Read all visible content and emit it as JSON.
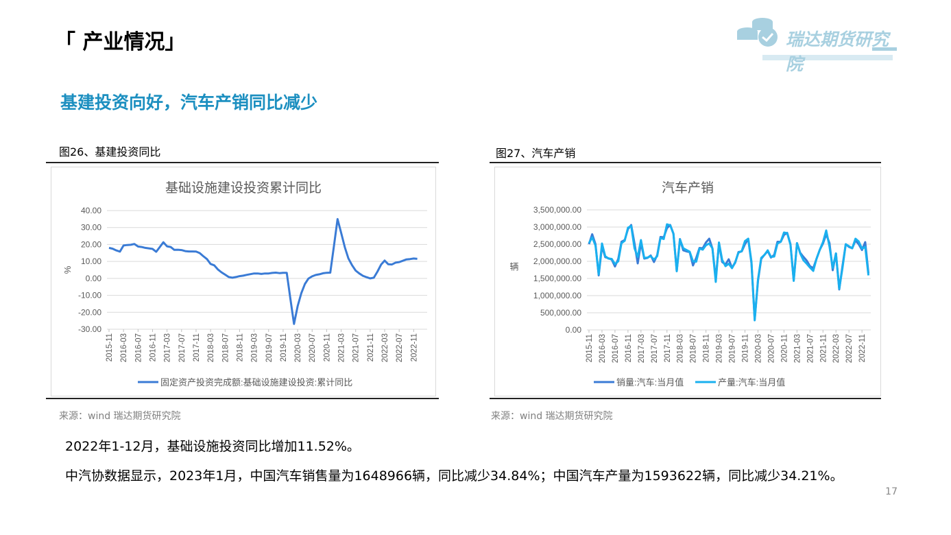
{
  "header": {
    "title": "「 产业情况」",
    "logo_text": "瑞达期货研究院"
  },
  "subtitle": "基建投资向好，汽车产销同比减少",
  "figures": [
    {
      "label": "图26、基建投资同比",
      "source": "来源：wind   瑞达期货研究院"
    },
    {
      "label": "图27、汽车产销",
      "source": "来源：wind   瑞达期货研究院"
    }
  ],
  "paragraphs": [
    "2022年1-12月，基础设施投资同比增加11.52%。",
    "中汽协数据显示，2023年1月，中国汽车销售量为1648966辆，同比减少34.84%；中国汽车产量为1593622辆，同比减少34.21%。"
  ],
  "page_number": "17",
  "colors": {
    "accent": "#1c8fc0",
    "series1": "#3a7bd5",
    "series2": "#1ab0ef",
    "logo": "#a8d0e0"
  },
  "chart_data": [
    {
      "type": "line",
      "title": "基础设施建设投资累计同比",
      "ylabel": "%",
      "ylim": [
        -30,
        40
      ],
      "yticks": [
        "40.00",
        "30.00",
        "20.00",
        "10.00",
        "0.00",
        "-10.00",
        "-20.00",
        "-30.00"
      ],
      "start": "2015-11",
      "xticks": [
        "2015-11",
        "2016-03",
        "2016-07",
        "2016-11",
        "2017-03",
        "2017-07",
        "2017-11",
        "2018-03",
        "2018-07",
        "2018-11",
        "2019-03",
        "2019-07",
        "2019-11",
        "2020-03",
        "2020-07",
        "2020-11",
        "2021-03",
        "2021-07",
        "2021-11",
        "2022-03",
        "2022-07",
        "2022-11"
      ],
      "series": [
        {
          "name": "固定资产投资完成额:基础设施建设投资:累计同比",
          "values": [
            18,
            17.5,
            16.5,
            15.8,
            19.4,
            19.7,
            19.8,
            20.3,
            18.8,
            18.5,
            18,
            17.7,
            17.4,
            15.7,
            18.5,
            21.3,
            18.9,
            18.5,
            16.8,
            16.9,
            16.7,
            16.1,
            15.9,
            15.9,
            15.8,
            14.9,
            13.1,
            11.4,
            8.5,
            7.7,
            5.3,
            3.6,
            2.2,
            0.8,
            0.4,
            0.8,
            1.3,
            1.6,
            2.1,
            2.5,
            2.9,
            2.9,
            2.6,
            2.9,
            2.9,
            3.2,
            3.4,
            3.1,
            3.3,
            3.3,
            -12,
            -26.9,
            -16.4,
            -8.8,
            -3.3,
            -0.1,
            1.2,
            2,
            2.4,
            3,
            3.3,
            3.4,
            19,
            35,
            26.8,
            18.4,
            11.8,
            7.8,
            4.6,
            2.9,
            1.5,
            0.7,
            0,
            0.4,
            4,
            8.1,
            10.5,
            8.3,
            8.2,
            9.3,
            9.6,
            10.4,
            11.2,
            11.4,
            11.7,
            11.5
          ]
        }
      ]
    },
    {
      "type": "line",
      "title": "汽车产销",
      "ylabel": "辆",
      "ylim": [
        0,
        3500000
      ],
      "yticks": [
        "3,500,000.00",
        "3,000,000.00",
        "2,500,000.00",
        "2,000,000.00",
        "1,500,000.00",
        "1,000,000.00",
        "500,000.00",
        "0.00"
      ],
      "start": "2015-11",
      "xticks": [
        "2015-11",
        "2016-03",
        "2016-07",
        "2016-11",
        "2017-03",
        "2017-07",
        "2017-11",
        "2018-03",
        "2018-07",
        "2018-11",
        "2019-03",
        "2019-07",
        "2019-11",
        "2020-03",
        "2020-07",
        "2020-11",
        "2021-03",
        "2021-07",
        "2021-11",
        "2022-03",
        "2022-07",
        "2022-11"
      ],
      "series": [
        {
          "name": "销量:汽车:当月值",
          "values": [
            2500000,
            2790000,
            2500000,
            1590000,
            2440000,
            2120000,
            2090000,
            2050000,
            1850000,
            2070000,
            2570000,
            2620000,
            2940000,
            3060000,
            2520000,
            1940000,
            2540000,
            2080000,
            2100000,
            2170000,
            1980000,
            2180000,
            2710000,
            2700000,
            2970000,
            3060000,
            2810000,
            1720000,
            2650000,
            2320000,
            2290000,
            2270000,
            1880000,
            2100000,
            2390000,
            2380000,
            2550000,
            2660000,
            2370000,
            1480000,
            2520000,
            1980000,
            1910000,
            2060000,
            1810000,
            1960000,
            2270000,
            2290000,
            2500000,
            2650000,
            1940000,
            310000,
            1430000,
            2070000,
            2190000,
            2300000,
            2110000,
            2190000,
            2570000,
            2570000,
            2770000,
            2830000,
            2500000,
            1450000,
            2530000,
            2250000,
            2130000,
            2020000,
            1860000,
            1800000,
            2070000,
            2330000,
            2520000,
            2790000,
            2530000,
            1740000,
            2230000,
            1180000,
            1860000,
            2500000,
            2420000,
            2380000,
            2610000,
            2500000,
            2330000,
            2560000,
            1650000
          ]
        },
        {
          "name": "产量:汽车:当月值",
          "values": [
            2530000,
            2700000,
            2460000,
            1620000,
            2520000,
            2150000,
            2080000,
            2070000,
            1920000,
            2000000,
            2530000,
            2600000,
            2980000,
            3030000,
            2380000,
            2130000,
            2620000,
            2100000,
            2110000,
            2150000,
            2050000,
            2150000,
            2680000,
            2650000,
            3080000,
            3050000,
            2800000,
            1710000,
            2640000,
            2380000,
            2330000,
            2280000,
            2000000,
            1990000,
            2370000,
            2340000,
            2470000,
            2520000,
            2380000,
            1400000,
            2550000,
            2040000,
            1860000,
            1930000,
            1800000,
            1980000,
            2250000,
            2300000,
            2590000,
            2660000,
            1990000,
            280000,
            1470000,
            2100000,
            2190000,
            2320000,
            2130000,
            2140000,
            2520000,
            2570000,
            2840000,
            2820000,
            2480000,
            1430000,
            2530000,
            2230000,
            2030000,
            1930000,
            1820000,
            1720000,
            2070000,
            2330000,
            2560000,
            2900000,
            2430000,
            1810000,
            2230000,
            1200000,
            1800000,
            2500000,
            2440000,
            2380000,
            2660000,
            2580000,
            2370000,
            2420000,
            1590000
          ]
        }
      ]
    }
  ]
}
